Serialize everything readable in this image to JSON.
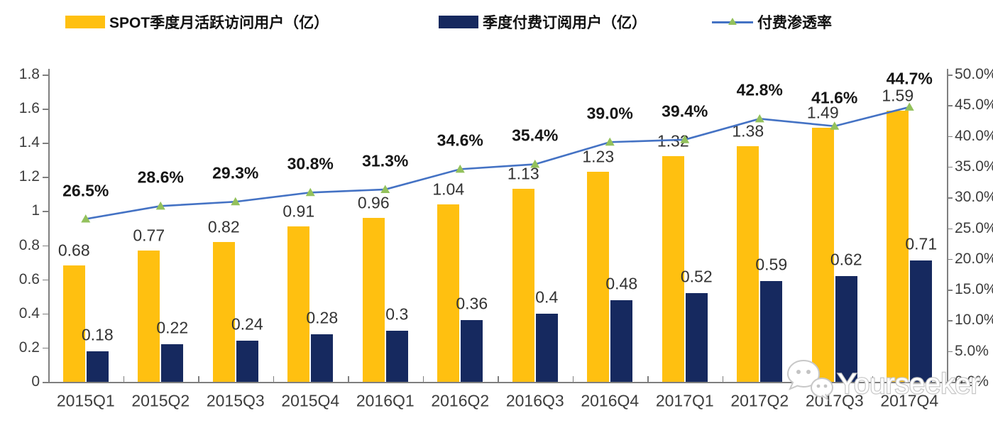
{
  "legend": {
    "items": [
      {
        "label": "SPOT季度月活跃访问用户（亿）",
        "swatch": "bar",
        "color": "#FFC010"
      },
      {
        "label": "季度付费订阅用户（亿）",
        "swatch": "bar",
        "color": "#16295F"
      },
      {
        "label": "付费渗透率",
        "swatch": "line-marker",
        "color": "#4472C4",
        "marker_color": "#93C15C"
      }
    ]
  },
  "chart_data": {
    "type": "bar",
    "subtype": "grouped-bars-with-line",
    "categories": [
      "2015Q1",
      "2015Q2",
      "2015Q3",
      "2015Q4",
      "2016Q1",
      "2016Q2",
      "2016Q3",
      "2016Q4",
      "2017Q1",
      "2017Q2",
      "2017Q3",
      "2017Q4"
    ],
    "series": [
      {
        "name": "SPOT季度月活跃访问用户（亿）",
        "type": "bar",
        "axis": "left",
        "color": "#FFC010",
        "values": [
          0.68,
          0.77,
          0.82,
          0.91,
          0.96,
          1.04,
          1.13,
          1.23,
          1.32,
          1.38,
          1.49,
          1.59
        ],
        "labels": [
          "0.68",
          "0.77",
          "0.82",
          "0.91",
          "0.96",
          "1.04",
          "1.13",
          "1.23",
          "1.32",
          "1.38",
          "1.49",
          "1.59"
        ]
      },
      {
        "name": "季度付费订阅用户（亿）",
        "type": "bar",
        "axis": "left",
        "color": "#16295F",
        "values": [
          0.18,
          0.22,
          0.24,
          0.28,
          0.3,
          0.36,
          0.4,
          0.48,
          0.52,
          0.59,
          0.62,
          0.71
        ],
        "labels": [
          "0.18",
          "0.22",
          "0.24",
          "0.28",
          "0.3",
          "0.36",
          "0.4",
          "0.48",
          "0.52",
          "0.59",
          "0.62",
          "0.71"
        ]
      },
      {
        "name": "付费渗透率",
        "type": "line",
        "axis": "right",
        "color": "#4472C4",
        "marker": "triangle",
        "marker_color": "#93C15C",
        "values": [
          26.5,
          28.6,
          29.3,
          30.8,
          31.3,
          34.6,
          35.4,
          39.0,
          39.4,
          42.8,
          41.6,
          44.7
        ],
        "labels": [
          "26.5%",
          "28.6%",
          "29.3%",
          "30.8%",
          "31.3%",
          "34.6%",
          "35.4%",
          "39.0%",
          "39.4%",
          "42.8%",
          "41.6%",
          "44.7%"
        ]
      }
    ],
    "left_axis": {
      "min": 0,
      "max": 1.8,
      "ticks": [
        "1.8",
        "1.6",
        "1.4",
        "1.2",
        "1",
        "0.8",
        "0.6",
        "0.4",
        "0.2",
        "0"
      ]
    },
    "right_axis": {
      "min": 0,
      "max": 50,
      "ticks": [
        "50.0%",
        "45.0%",
        "40.0%",
        "35.0%",
        "30.0%",
        "25.0%",
        "20.0%",
        "15.0%",
        "10.0%",
        "5.0%",
        "0.0%"
      ]
    },
    "grid": false,
    "legend_position": "top",
    "title": ""
  },
  "watermark": {
    "text": "Yourseeker"
  }
}
